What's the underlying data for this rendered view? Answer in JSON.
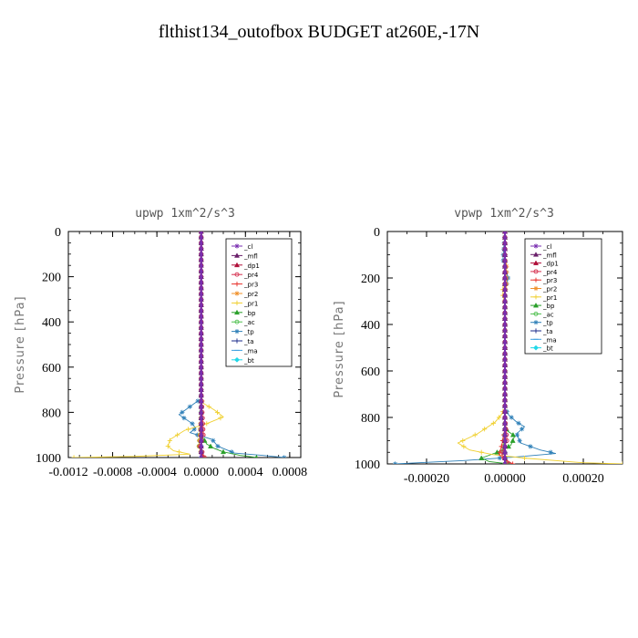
{
  "figure_title": "flthist134_outofbox  BUDGET at260E,-17N",
  "chart_data": [
    {
      "type": "line",
      "title": "upwp   1xm^2/s^3",
      "ylabel": "Pressure [hPa]",
      "xlim": [
        -0.0012,
        0.0009
      ],
      "ylim": [
        0,
        1000
      ],
      "y_inverted": true,
      "xticks": [
        -0.0012,
        -0.0008,
        -0.0004,
        0.0,
        0.0004,
        0.0008
      ],
      "xtick_labels": [
        "-0.0012",
        "-0.0008",
        "-0.0004",
        "0.0000",
        "0.0004",
        "0.0008"
      ],
      "yticks": [
        0,
        200,
        400,
        600,
        800,
        1000
      ],
      "legend_position": "top-right",
      "series": [
        {
          "name": "_cl",
          "color": "#7a2fb0",
          "marker": "star",
          "x": [
            0,
            0,
            0,
            0,
            0,
            0
          ],
          "y": [
            0,
            200,
            400,
            600,
            800,
            1000
          ]
        },
        {
          "name": "_mfl",
          "color": "#6a1f6a",
          "marker": "triangle",
          "x": [
            0,
            0,
            0,
            0,
            0,
            0
          ],
          "y": [
            0,
            200,
            400,
            600,
            800,
            1000
          ]
        },
        {
          "name": "_dp1",
          "color": "#b0103a",
          "marker": "triangle",
          "x": [
            0,
            0,
            0,
            0,
            0,
            0
          ],
          "y": [
            0,
            200,
            400,
            600,
            800,
            1000
          ]
        },
        {
          "name": "_pr4",
          "color": "#d6314f",
          "marker": "circle",
          "x": [
            0,
            0,
            0,
            1e-05,
            2e-05,
            -1e-05,
            3e-05
          ],
          "y": [
            0,
            400,
            700,
            800,
            900,
            950,
            1000
          ]
        },
        {
          "name": "_pr3",
          "color": "#e8302a",
          "marker": "plus",
          "x": [
            0,
            0,
            0,
            1e-05,
            -1e-05,
            2e-05
          ],
          "y": [
            0,
            400,
            800,
            900,
            950,
            1000
          ]
        },
        {
          "name": "_pr2",
          "color": "#f0902a",
          "marker": "star",
          "x": [
            0,
            0,
            0,
            -2e-05,
            1e-05
          ],
          "y": [
            0,
            400,
            800,
            950,
            1000
          ]
        },
        {
          "name": "_pr1",
          "color": "#f0d030",
          "marker": "plus",
          "x": [
            0,
            0,
            2e-05,
            0.00012,
            0.0002,
            5e-05,
            -0.00015,
            -0.00028,
            -0.0003,
            -0.00025,
            -0.0001,
            -0.0006,
            -0.00115
          ],
          "y": [
            0,
            740,
            760,
            790,
            820,
            850,
            880,
            920,
            950,
            970,
            985,
            995,
            1000
          ]
        },
        {
          "name": "_bp",
          "color": "#2aa02a",
          "marker": "triangle",
          "x": [
            0,
            0,
            0,
            5e-05,
            0.00012,
            0.0002,
            0.00035,
            0.0005
          ],
          "y": [
            0,
            800,
            900,
            940,
            960,
            975,
            990,
            1000
          ]
        },
        {
          "name": "_ac",
          "color": "#50c050",
          "marker": "circle",
          "x": [
            0,
            0,
            -2e-05,
            2e-05
          ],
          "y": [
            0,
            850,
            950,
            1000
          ]
        },
        {
          "name": "_tp",
          "color": "#2f80b8",
          "marker": "star",
          "x": [
            0,
            0,
            -6e-05,
            -0.0002,
            -8e-05,
            -5e-05,
            -0.0001,
            0.0001,
            0.00015,
            0.0003,
            0.00055,
            0.00075
          ],
          "y": [
            0,
            740,
            760,
            810,
            850,
            870,
            890,
            920,
            950,
            980,
            990,
            1000
          ]
        },
        {
          "name": "_ta",
          "color": "#1a2a8a",
          "marker": "plus",
          "x": [
            0,
            0,
            0,
            0
          ],
          "y": [
            0,
            500,
            900,
            1000
          ]
        },
        {
          "name": "_ma",
          "color": "#3fa0e0",
          "marker": "dash",
          "x": [
            0,
            0,
            0
          ],
          "y": [
            0,
            900,
            1000
          ]
        },
        {
          "name": "_bt",
          "color": "#20d8e8",
          "marker": "diamond",
          "x": [
            0,
            0,
            0
          ],
          "y": [
            0,
            900,
            1000
          ]
        }
      ]
    },
    {
      "type": "line",
      "title": "vpwp   1xm^2/s^3",
      "ylabel": "Pressure [hPa]",
      "xlim": [
        -0.0003,
        0.0003
      ],
      "ylim": [
        0,
        1000
      ],
      "y_inverted": true,
      "xticks": [
        -0.0002,
        0.0,
        0.0002
      ],
      "xtick_labels": [
        "-0.00020",
        "0.00000",
        "0.00020"
      ],
      "yticks": [
        0,
        200,
        400,
        600,
        800,
        1000
      ],
      "legend_position": "top-right",
      "series": [
        {
          "name": "_cl",
          "color": "#7a2fb0",
          "marker": "star",
          "x": [
            0,
            0,
            0,
            0,
            0,
            0
          ],
          "y": [
            0,
            200,
            400,
            600,
            800,
            1000
          ]
        },
        {
          "name": "_mfl",
          "color": "#6a1f6a",
          "marker": "triangle",
          "x": [
            0,
            0,
            0,
            0,
            0,
            0
          ],
          "y": [
            0,
            200,
            400,
            600,
            800,
            1000
          ]
        },
        {
          "name": "_dp1",
          "color": "#b0103a",
          "marker": "triangle",
          "x": [
            0,
            0,
            0,
            0,
            0,
            0
          ],
          "y": [
            0,
            200,
            400,
            600,
            800,
            1000
          ]
        },
        {
          "name": "_pr4",
          "color": "#d6314f",
          "marker": "circle",
          "x": [
            0,
            0,
            5e-06,
            -8e-06,
            1e-05
          ],
          "y": [
            0,
            800,
            900,
            960,
            1000
          ]
        },
        {
          "name": "_pr3",
          "color": "#e8302a",
          "marker": "plus",
          "x": [
            0,
            0,
            -8e-06,
            -1.5e-05,
            5e-06,
            2e-05
          ],
          "y": [
            0,
            850,
            920,
            960,
            985,
            1000
          ]
        },
        {
          "name": "_pr2",
          "color": "#f0902a",
          "marker": "star",
          "x": [
            0,
            0,
            4e-06,
            4e-06,
            -2e-06,
            0,
            0
          ],
          "y": [
            0,
            120,
            140,
            230,
            280,
            320,
            1000
          ]
        },
        {
          "name": "_pr1",
          "color": "#f0d030",
          "marker": "plus",
          "x": [
            0,
            0,
            -5e-06,
            -5e-06,
            0,
            0,
            -1e-05,
            -2.5e-05,
            -7e-05,
            -0.00012,
            -9e-05,
            -3e-05,
            5e-05,
            0.0002,
            0.0003
          ],
          "y": [
            0,
            220,
            240,
            280,
            300,
            760,
            790,
            820,
            870,
            910,
            940,
            960,
            975,
            995,
            1000
          ]
        },
        {
          "name": "_bp",
          "color": "#2aa02a",
          "marker": "triangle",
          "x": [
            0,
            0,
            8e-06,
            2.5e-05,
            1.5e-05,
            -2e-05,
            -6e-05,
            -4e-05,
            1e-05
          ],
          "y": [
            0,
            840,
            860,
            880,
            920,
            950,
            975,
            990,
            1000
          ]
        },
        {
          "name": "_ac",
          "color": "#50c050",
          "marker": "circle",
          "x": [
            0,
            0,
            -5e-06,
            5e-06
          ],
          "y": [
            0,
            860,
            940,
            1000
          ]
        },
        {
          "name": "_tp",
          "color": "#2f80b8",
          "marker": "star",
          "x": [
            0,
            -5e-06,
            8e-06,
            0,
            0,
            1e-05,
            3e-05,
            5e-05,
            3e-05,
            4e-05,
            9e-05,
            0.00013,
            3e-05,
            -0.0001,
            -0.00022,
            -0.00028
          ],
          "y": [
            0,
            120,
            200,
            260,
            760,
            790,
            820,
            840,
            870,
            910,
            940,
            955,
            970,
            985,
            995,
            1000
          ]
        },
        {
          "name": "_ta",
          "color": "#1a2a8a",
          "marker": "plus",
          "x": [
            0,
            0,
            0,
            0
          ],
          "y": [
            0,
            500,
            900,
            1000
          ]
        },
        {
          "name": "_ma",
          "color": "#3fa0e0",
          "marker": "dash",
          "x": [
            0,
            0,
            0
          ],
          "y": [
            0,
            900,
            1000
          ]
        },
        {
          "name": "_bt",
          "color": "#20d8e8",
          "marker": "diamond",
          "x": [
            0,
            0,
            0
          ],
          "y": [
            0,
            900,
            1000
          ]
        }
      ]
    }
  ]
}
